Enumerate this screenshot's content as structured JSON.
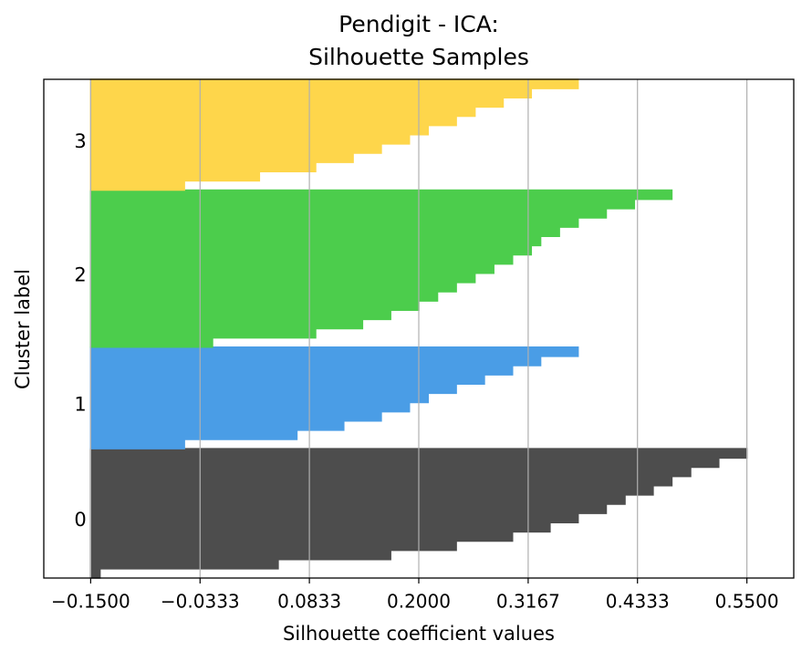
{
  "chart_data": {
    "type": "silhouette",
    "title": "Pendigit - ICA:",
    "subtitle": "Silhouette Samples",
    "x_label": "Silhouette coefficient values",
    "y_label": "Cluster label",
    "xlim": [
      -0.2,
      0.6
    ],
    "xticks": [
      {
        "value": -0.15,
        "label": "−0.1500"
      },
      {
        "value": -0.0333,
        "label": "−0.0333"
      },
      0.0833,
      {
        "value": 0.2,
        "label": "0.2000"
      },
      0.3167,
      0.4333,
      {
        "value": 0.55,
        "label": "0.5500"
      }
    ],
    "grid": true,
    "series": [
      {
        "name": "0",
        "color": "#4d4d4d",
        "values": [
          -0.14,
          0.05,
          0.17,
          0.24,
          0.3,
          0.34,
          0.37,
          0.4,
          0.42,
          0.45,
          0.47,
          0.49,
          0.52,
          0.55
        ]
      },
      {
        "name": "1",
        "color": "#4a9de6",
        "values": [
          -0.05,
          0.07,
          0.12,
          0.16,
          0.19,
          0.21,
          0.24,
          0.27,
          0.3,
          0.33,
          0.37
        ]
      },
      {
        "name": "2",
        "color": "#4ccd4c",
        "values": [
          -0.02,
          0.09,
          0.14,
          0.17,
          0.2,
          0.22,
          0.24,
          0.26,
          0.28,
          0.3,
          0.32,
          0.33,
          0.35,
          0.37,
          0.4,
          0.43,
          0.47
        ]
      },
      {
        "name": "3",
        "color": "#fed64b",
        "values": [
          -0.05,
          0.03,
          0.09,
          0.13,
          0.16,
          0.19,
          0.21,
          0.24,
          0.26,
          0.29,
          0.32,
          0.37
        ]
      }
    ]
  }
}
